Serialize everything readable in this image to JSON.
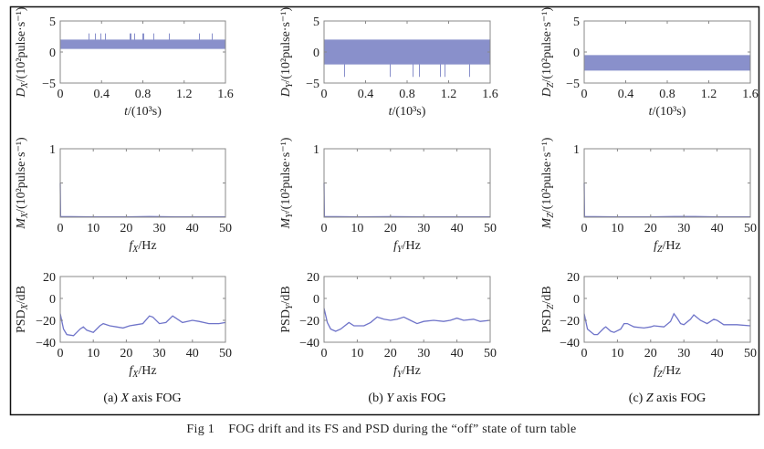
{
  "figure_caption": "Fig 1    FOG drift and its FS and PSD during the “off” state of turn table",
  "line_color": "#6f74c9",
  "signal_color": "#3a46a8",
  "chart_data": [
    {
      "panel": "a-drift",
      "type": "line",
      "xlabel": "t/(10³s)",
      "ylabel": {
        "sym": "D",
        "sub": "X",
        "unit": "/(10²pulse·s⁻¹)"
      },
      "xlim": [
        0,
        1.6
      ],
      "ylim": [
        -5,
        5
      ],
      "xticks": [
        "0",
        "0.4",
        "0.8",
        "1.2",
        "1.6"
      ],
      "yticks": [
        "-5",
        "0",
        "5"
      ],
      "signal_band": [
        0.5,
        2
      ],
      "spike_range": [
        0.5,
        3
      ]
    },
    {
      "panel": "b-drift",
      "type": "line",
      "xlabel": "t/(10³s)",
      "ylabel": {
        "sym": "D",
        "sub": "Y",
        "unit": "/(10²pulse·s⁻¹)"
      },
      "xlim": [
        0,
        1.6
      ],
      "ylim": [
        -5,
        5
      ],
      "xticks": [
        "0",
        "0.4",
        "0.8",
        "1.2",
        "1.6"
      ],
      "yticks": [
        "-5",
        "0",
        "5"
      ],
      "signal_band": [
        -2,
        2
      ],
      "spike_range": [
        -4,
        2
      ]
    },
    {
      "panel": "c-drift",
      "type": "line",
      "xlabel": "t/(10³s)",
      "ylabel": {
        "sym": "D",
        "sub": "Z",
        "unit": "/(10²pulse·s⁻¹)"
      },
      "xlim": [
        0,
        1.6
      ],
      "ylim": [
        -5,
        5
      ],
      "xticks": [
        "0",
        "0.4",
        "0.8",
        "1.2",
        "1.6"
      ],
      "yticks": [
        "-5",
        "0",
        "5"
      ],
      "signal_band": [
        -3,
        -0.5
      ],
      "spike_range": [
        -3,
        -0.5
      ]
    },
    {
      "panel": "a-fs",
      "type": "line",
      "xlabel": "f_X/Hz",
      "xsym": "f",
      "xsub": "X",
      "xunit": "/Hz",
      "ylabel": {
        "sym": "M",
        "sub": "X",
        "unit": "/(10²pulse·s⁻¹)"
      },
      "xlim": [
        0,
        50
      ],
      "ylim": [
        0,
        1
      ],
      "xticks": [
        "0",
        "10",
        "20",
        "30",
        "40",
        "50"
      ],
      "yticks": [
        "1"
      ],
      "x": [
        0,
        0.1,
        10,
        20,
        27,
        30,
        35,
        50
      ],
      "y": [
        0.5,
        0.01,
        0.005,
        0.005,
        0.01,
        0.008,
        0.005,
        0.005
      ]
    },
    {
      "panel": "b-fs",
      "type": "line",
      "xlabel": "f_Y/Hz",
      "xsym": "f",
      "xsub": "Y",
      "xunit": "/Hz",
      "ylabel": {
        "sym": "M",
        "sub": "Y",
        "unit": "/(10²pulse·s⁻¹)"
      },
      "xlim": [
        0,
        50
      ],
      "ylim": [
        0,
        1
      ],
      "xticks": [
        "0",
        "10",
        "20",
        "30",
        "40",
        "50"
      ],
      "yticks": [
        "1"
      ],
      "x": [
        0,
        0.1,
        10,
        20,
        30,
        40,
        50
      ],
      "y": [
        0.5,
        0.01,
        0.005,
        0.008,
        0.005,
        0.005,
        0.005
      ]
    },
    {
      "panel": "c-fs",
      "type": "line",
      "xlabel": "f_Z/Hz",
      "xsym": "f",
      "xsub": "Z",
      "xunit": "/Hz",
      "ylabel": {
        "sym": "M",
        "sub": "Z",
        "unit": "/(10²pulse·s⁻¹)"
      },
      "xlim": [
        0,
        50
      ],
      "ylim": [
        0,
        1
      ],
      "xticks": [
        "0",
        "10",
        "20",
        "30",
        "40",
        "50"
      ],
      "yticks": [
        "1"
      ],
      "x": [
        0,
        0.1,
        10,
        20,
        27,
        33,
        40,
        50
      ],
      "y": [
        0.5,
        0.01,
        0.005,
        0.005,
        0.01,
        0.01,
        0.005,
        0.005
      ]
    },
    {
      "panel": "a-psd",
      "type": "line",
      "xsym": "f",
      "xsub": "X",
      "xunit": "/Hz",
      "ylabel": {
        "sym": "PSD",
        "sub": "X",
        "unit": "/dB",
        "upright": true
      },
      "xlim": [
        0,
        50
      ],
      "ylim": [
        -40,
        20
      ],
      "xticks": [
        "0",
        "10",
        "20",
        "30",
        "40",
        "50"
      ],
      "yticks": [
        "-40",
        "-20",
        "0",
        "20"
      ],
      "x": [
        0,
        1,
        2,
        4,
        6,
        7,
        8,
        10,
        12,
        13,
        15,
        17,
        19,
        21,
        23,
        25,
        27,
        28,
        30,
        32,
        34,
        35,
        37,
        40,
        42,
        45,
        48,
        50
      ],
      "y": [
        -14,
        -28,
        -33,
        -34,
        -28,
        -26,
        -29,
        -31,
        -25,
        -23,
        -25,
        -26,
        -27,
        -25,
        -24,
        -23,
        -16,
        -17,
        -23,
        -22,
        -16,
        -18,
        -22,
        -20,
        -21,
        -23,
        -23,
        -22
      ]
    },
    {
      "panel": "b-psd",
      "type": "line",
      "xsym": "f",
      "xsub": "Y",
      "xunit": "/Hz",
      "ylabel": {
        "sym": "PSD",
        "sub": "Y",
        "unit": "/dB",
        "upright": true
      },
      "xlim": [
        0,
        50
      ],
      "ylim": [
        -40,
        20
      ],
      "xticks": [
        "0",
        "10",
        "20",
        "30",
        "40",
        "50"
      ],
      "yticks": [
        "-40",
        "-20",
        "0",
        "20"
      ],
      "x": [
        0,
        1,
        2,
        3.5,
        5,
        7.5,
        9,
        12,
        14,
        16,
        18,
        20,
        22,
        24,
        26,
        28,
        30,
        33,
        36,
        38,
        40,
        42,
        45,
        47,
        50
      ],
      "y": [
        -9,
        -22,
        -28,
        -30,
        -28,
        -22,
        -25,
        -25,
        -22,
        -17,
        -19,
        -20,
        -19,
        -17,
        -20,
        -23,
        -21,
        -20,
        -21,
        -20,
        -18,
        -20,
        -19,
        -21,
        -20
      ]
    },
    {
      "panel": "c-psd",
      "type": "line",
      "xsym": "f",
      "xsub": "Z",
      "xunit": "/Hz",
      "ylabel": {
        "sym": "PSD",
        "sub": "Z",
        "unit": "/dB",
        "upright": true
      },
      "xlim": [
        0,
        50
      ],
      "ylim": [
        -40,
        20
      ],
      "xticks": [
        "0",
        "10",
        "20",
        "30",
        "40",
        "50"
      ],
      "yticks": [
        "-40",
        "-20",
        "0",
        "20"
      ],
      "x": [
        0,
        1,
        3,
        4,
        6,
        6.5,
        8,
        9,
        11,
        12,
        13,
        15,
        18,
        20,
        21,
        24,
        26,
        27,
        28,
        29,
        30,
        32,
        33,
        35,
        37,
        39,
        40,
        42,
        46,
        50
      ],
      "y": [
        -14,
        -28,
        -33,
        -33,
        -27,
        -26,
        -30,
        -31,
        -28,
        -23,
        -23,
        -26,
        -27,
        -26,
        -25,
        -26,
        -21,
        -14,
        -18,
        -23,
        -24,
        -19,
        -15,
        -20,
        -23,
        -19,
        -20,
        -24,
        -24,
        -25
      ]
    }
  ],
  "captions": [
    {
      "prefix": "(a) ",
      "axis": "X",
      "suffix": " axis FOG"
    },
    {
      "prefix": "(b) ",
      "axis": "Y",
      "suffix": " axis FOG"
    },
    {
      "prefix": "(c) ",
      "axis": "Z",
      "suffix": " axis FOG"
    }
  ]
}
